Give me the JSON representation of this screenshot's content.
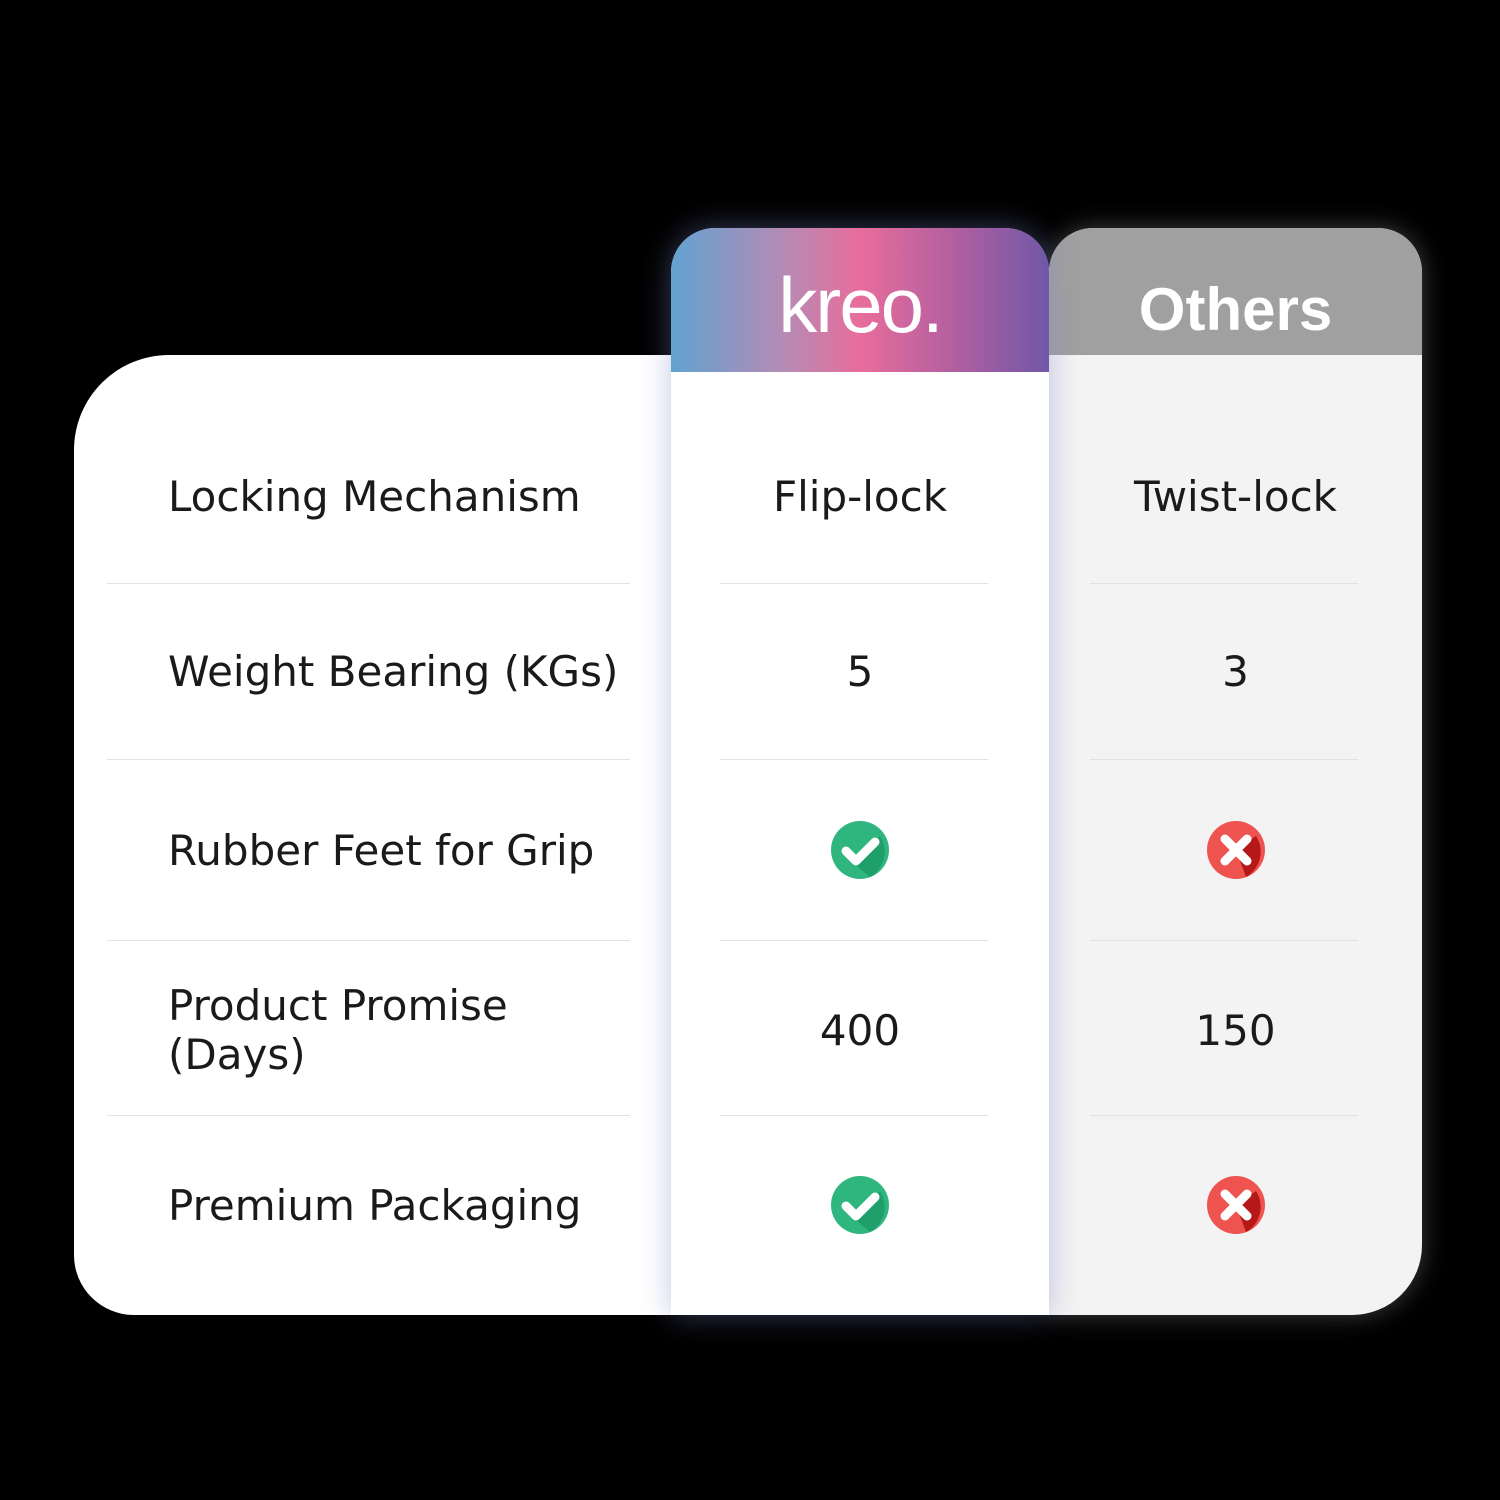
{
  "header": {
    "brand_logo": "kreo.",
    "others_label": "Others"
  },
  "rows": [
    {
      "feature": "Locking Mechanism",
      "kreo": "Flip-lock",
      "others": "Twist-lock"
    },
    {
      "feature": "Weight Bearing (KGs)",
      "kreo": "5",
      "others": "3"
    },
    {
      "feature": "Rubber Feet for Grip",
      "kreo_icon": "check-icon",
      "others_icon": "cross-icon"
    },
    {
      "feature": "Product Promise (Days)",
      "kreo": "400",
      "others": "150"
    },
    {
      "feature": "Premium Packaging",
      "kreo_icon": "check-icon",
      "others_icon": "cross-icon"
    }
  ],
  "colors": {
    "check": "#2cb67d",
    "cross": "#e84848",
    "others_header": "#a0a0a0"
  }
}
